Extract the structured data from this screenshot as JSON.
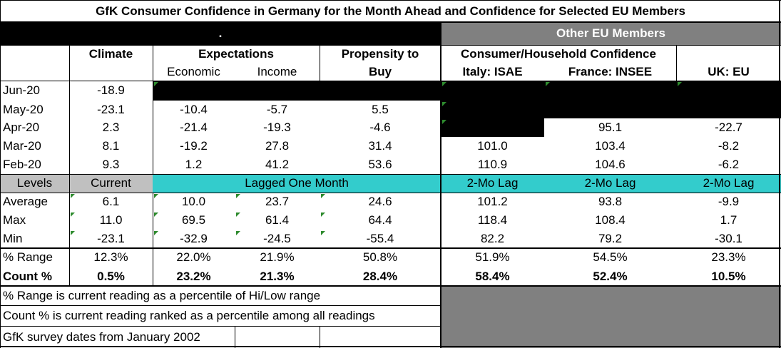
{
  "title": "GfK Consumer Confidence in Germany for the Month Ahead and Confidence for Selected EU Members",
  "banner": {
    "dot": ".",
    "other_eu": "Other EU Members"
  },
  "headers": {
    "climate": "Climate",
    "expectations": "Expectations",
    "economic": "Economic",
    "income": "Income",
    "propensity_1": "Propensity to",
    "propensity_2": "Buy",
    "consumer_household": "Consumer/Household Confidence",
    "italy": "Italy: ISAE",
    "france": "France: INSEE",
    "uk": "UK: EU"
  },
  "rows": [
    {
      "label": "Jun-20",
      "climate": "-18.9",
      "economic": "",
      "income": "",
      "propensity": "",
      "italy": "",
      "france": "",
      "uk": ""
    },
    {
      "label": "May-20",
      "climate": "-23.1",
      "economic": "-10.4",
      "income": "-5.7",
      "propensity": "5.5",
      "italy": "",
      "france": "",
      "uk": ""
    },
    {
      "label": "Apr-20",
      "climate": "2.3",
      "economic": "-21.4",
      "income": "-19.3",
      "propensity": "-4.6",
      "italy": "",
      "france": "95.1",
      "uk": "-22.7"
    },
    {
      "label": "Mar-20",
      "climate": "8.1",
      "economic": "-19.2",
      "income": "27.8",
      "propensity": "31.4",
      "italy": "101.0",
      "france": "103.4",
      "uk": "-8.2"
    },
    {
      "label": "Feb-20",
      "climate": "9.3",
      "economic": "1.2",
      "income": "41.2",
      "propensity": "53.6",
      "italy": "110.9",
      "france": "104.6",
      "uk": "-6.2"
    }
  ],
  "levels_row": {
    "label": "Levels",
    "current": "Current",
    "lagged": "Lagged One Month",
    "italy_lag": "2-Mo Lag",
    "france_lag": "2-Mo Lag",
    "uk_lag": "2-Mo Lag"
  },
  "stats": [
    {
      "label": "Average",
      "climate": "6.1",
      "economic": "10.0",
      "income": "23.7",
      "propensity": "24.6",
      "italy": "101.2",
      "france": "93.8",
      "uk": "-9.9"
    },
    {
      "label": "Max",
      "climate": "11.0",
      "economic": "69.5",
      "income": "61.4",
      "propensity": "64.4",
      "italy": "118.4",
      "france": "108.4",
      "uk": "1.7"
    },
    {
      "label": "Min",
      "climate": "-23.1",
      "economic": "-32.9",
      "income": "-24.5",
      "propensity": "-55.4",
      "italy": "82.2",
      "france": "79.2",
      "uk": "-30.1"
    }
  ],
  "range": {
    "label": "% Range",
    "climate": "12.3%",
    "economic": "22.0%",
    "income": "21.9%",
    "propensity": "50.8%",
    "italy": "51.9%",
    "france": "54.5%",
    "uk": "23.3%"
  },
  "count": {
    "label": "Count %",
    "climate": "0.5%",
    "economic": "23.2%",
    "income": "21.3%",
    "propensity": "28.4%",
    "italy": "58.4%",
    "france": "52.4%",
    "uk": "10.5%"
  },
  "notes": [
    "% Range is current reading as a percentile of Hi/Low range",
    "Count % is current reading ranked as a percentile among all readings",
    "GfK survey dates from January 2002"
  ]
}
